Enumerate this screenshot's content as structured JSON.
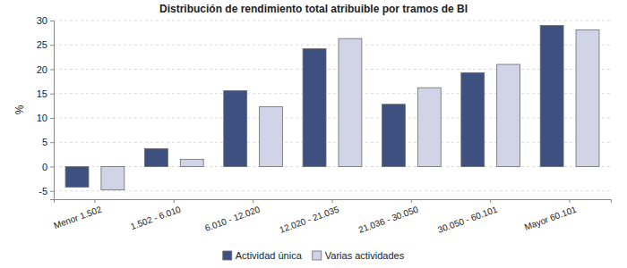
{
  "chart_data": {
    "type": "bar",
    "title": "Distribución de rendimiento total atribuible por tramos de BI",
    "y_label": "%",
    "categories": [
      "Menor 1.502",
      "1.502 - 6.010",
      "6.010 - 12.020",
      "12.020 - 21.035",
      "21.036 - 30.050",
      "30.050 - 60.101",
      "Mayor 60.101"
    ],
    "series": [
      {
        "name": "Actividad única",
        "color": "#3d5080",
        "values": [
          -4.2,
          3.7,
          15.6,
          24.2,
          12.8,
          19.3,
          29.0
        ]
      },
      {
        "name": "Varias actividades",
        "color": "#d0d4e6",
        "values": [
          -4.8,
          1.5,
          12.3,
          26.3,
          16.2,
          21.0,
          28.1
        ]
      }
    ],
    "ylim": [
      -6.7,
      30
    ],
    "yticks": [
      -5,
      0,
      5,
      10,
      15,
      20,
      25,
      30
    ],
    "grid": true,
    "legend": "bottom"
  }
}
